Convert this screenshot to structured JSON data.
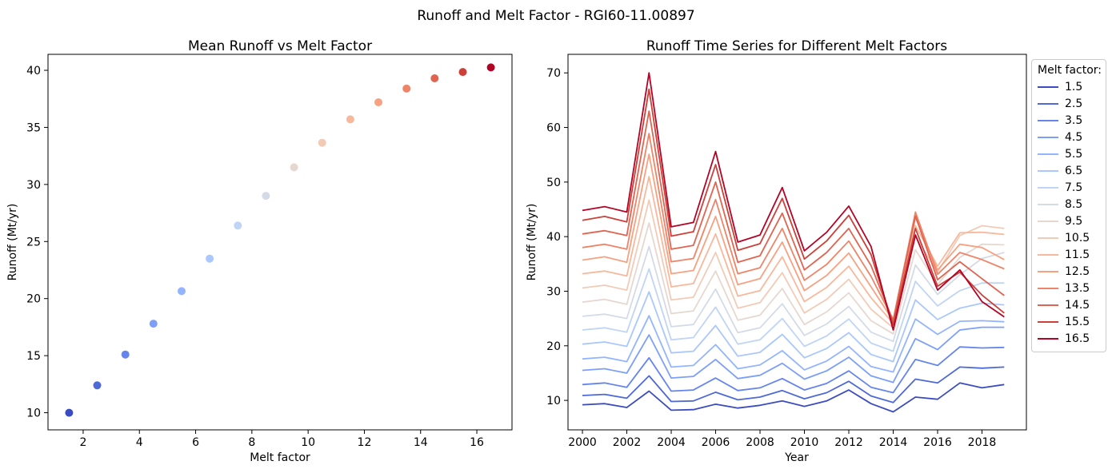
{
  "figure": {
    "suptitle": "Runoff and Melt Factor - RGI60-11.00897",
    "background": "#ffffff"
  },
  "legend": {
    "title": "Melt factor:"
  },
  "chart_data": [
    {
      "id": "mean-runoff-scatter",
      "type": "scatter",
      "title": "Mean Runoff vs Melt Factor",
      "xlabel": "Melt factor",
      "ylabel": "Runoff (Mt/yr)",
      "xlim": [
        0.75,
        17.25
      ],
      "ylim": [
        8.5,
        41.4
      ],
      "xticks": [
        2,
        4,
        6,
        8,
        10,
        12,
        14,
        16
      ],
      "yticks": [
        10,
        15,
        20,
        25,
        30,
        35,
        40
      ],
      "grid": false,
      "x": [
        1.5,
        2.5,
        3.5,
        4.5,
        5.5,
        6.5,
        7.5,
        8.5,
        9.5,
        10.5,
        11.5,
        12.5,
        13.5,
        14.5,
        15.5,
        16.5
      ],
      "y": [
        10.0,
        12.4,
        15.1,
        17.8,
        20.65,
        23.5,
        26.4,
        29.0,
        31.5,
        33.65,
        35.7,
        37.2,
        38.4,
        39.3,
        39.85,
        40.25
      ],
      "point_colors": [
        "#3B4CC0",
        "#4E69D8",
        "#6585ED",
        "#7C9FF9",
        "#93B5FF",
        "#AAC7FE",
        "#C0D4F5",
        "#D4DBE7",
        "#E5D8D1",
        "#F2CBB7",
        "#F7B89C",
        "#F6A282",
        "#EE8468",
        "#E06450",
        "#CC4039",
        "#B40426"
      ]
    },
    {
      "id": "runoff-timeseries",
      "type": "line",
      "title": "Runoff Time Series for Different Melt Factors",
      "xlabel": "Year",
      "ylabel": "Runoff (Mt/yr)",
      "xlim": [
        1999.35,
        2020.0
      ],
      "ylim": [
        4.6,
        73.4
      ],
      "xticks": [
        2000,
        2002,
        2004,
        2006,
        2008,
        2010,
        2012,
        2014,
        2016,
        2018
      ],
      "yticks": [
        10,
        20,
        30,
        40,
        50,
        60,
        70
      ],
      "grid": false,
      "legend_title": "Melt factor:",
      "legend_position": "outside-right",
      "x": [
        2000,
        2001,
        2002,
        2003,
        2004,
        2005,
        2006,
        2007,
        2008,
        2009,
        2010,
        2011,
        2012,
        2013,
        2014,
        2015,
        2016,
        2017,
        2018,
        2019
      ],
      "series": [
        {
          "name": "1.5",
          "color": "#3B4CC0",
          "values": [
            9.2,
            9.4,
            8.7,
            11.7,
            8.2,
            8.3,
            9.3,
            8.6,
            9.1,
            9.9,
            8.9,
            9.9,
            11.9,
            9.4,
            7.9,
            10.6,
            10.2,
            13.2,
            12.3,
            12.9
          ]
        },
        {
          "name": "2.5",
          "color": "#4E69D8",
          "values": [
            10.9,
            11.1,
            10.4,
            14.5,
            9.8,
            9.9,
            11.5,
            10.1,
            10.6,
            11.8,
            10.3,
            11.4,
            13.5,
            10.8,
            9.6,
            13.9,
            13.2,
            16.1,
            15.9,
            16.1
          ]
        },
        {
          "name": "3.5",
          "color": "#6585ED",
          "values": [
            12.9,
            13.2,
            12.4,
            17.8,
            11.7,
            11.9,
            14.1,
            11.8,
            12.3,
            14.0,
            11.9,
            13.1,
            15.4,
            12.4,
            11.4,
            17.5,
            16.4,
            19.8,
            19.6,
            19.7
          ]
        },
        {
          "name": "4.5",
          "color": "#7C9FF9",
          "values": [
            15.5,
            15.8,
            15.0,
            22.0,
            14.1,
            14.4,
            17.5,
            14.0,
            14.6,
            16.8,
            13.9,
            15.4,
            17.9,
            14.5,
            13.3,
            21.3,
            19.3,
            22.9,
            23.4,
            23.4
          ]
        },
        {
          "name": "5.5",
          "color": "#93B5FF",
          "values": [
            17.6,
            17.9,
            17.1,
            25.5,
            16.1,
            16.4,
            20.2,
            15.8,
            16.5,
            19.1,
            15.6,
            17.2,
            19.9,
            16.2,
            15.2,
            24.9,
            22.1,
            24.5,
            24.6,
            24.4
          ]
        },
        {
          "name": "6.5",
          "color": "#AAC7FE",
          "values": [
            20.3,
            20.7,
            19.9,
            29.9,
            18.7,
            19.0,
            23.7,
            18.1,
            18.8,
            22.1,
            17.8,
            19.5,
            22.4,
            18.4,
            17.1,
            28.4,
            24.8,
            26.9,
            27.8,
            27.5
          ]
        },
        {
          "name": "7.5",
          "color": "#C0D4F5",
          "values": [
            22.9,
            23.3,
            22.5,
            34.1,
            21.1,
            21.5,
            27.1,
            20.3,
            21.1,
            25.0,
            19.9,
            21.8,
            24.9,
            20.5,
            19.0,
            31.8,
            27.3,
            30.1,
            31.5,
            31.5
          ]
        },
        {
          "name": "8.5",
          "color": "#D4DBE7",
          "values": [
            25.4,
            25.8,
            25.0,
            38.2,
            23.5,
            23.9,
            30.4,
            22.4,
            23.3,
            27.7,
            21.9,
            24.0,
            27.2,
            22.5,
            20.8,
            34.8,
            29.4,
            33.0,
            36.0,
            37.1
          ]
        },
        {
          "name": "9.5",
          "color": "#E5D8D1",
          "values": [
            28.0,
            28.5,
            27.6,
            42.5,
            25.9,
            26.4,
            33.7,
            24.7,
            25.6,
            30.5,
            23.9,
            26.2,
            29.7,
            24.6,
            22.2,
            37.6,
            31.2,
            36.2,
            38.6,
            38.5
          ]
        },
        {
          "name": "10.5",
          "color": "#F2CBB7",
          "values": [
            30.6,
            31.1,
            30.2,
            46.7,
            28.4,
            28.9,
            37.1,
            26.9,
            27.9,
            33.4,
            26.0,
            28.5,
            32.2,
            26.7,
            23.3,
            40.0,
            33.5,
            40.2,
            42.0,
            41.5
          ]
        },
        {
          "name": "11.5",
          "color": "#F7B89C",
          "values": [
            33.2,
            33.7,
            32.8,
            51.0,
            30.8,
            31.4,
            40.5,
            29.1,
            30.1,
            36.3,
            28.1,
            30.7,
            34.6,
            28.8,
            24.1,
            42.0,
            34.6,
            40.7,
            40.8,
            40.4
          ]
        },
        {
          "name": "12.5",
          "color": "#F6A282",
          "values": [
            35.7,
            36.3,
            35.3,
            55.1,
            33.2,
            33.8,
            43.7,
            31.2,
            32.3,
            39.0,
            30.1,
            32.9,
            37.0,
            30.8,
            24.6,
            43.5,
            33.9,
            38.6,
            38.0,
            35.8
          ]
        },
        {
          "name": "13.5",
          "color": "#EE8468",
          "values": [
            38.0,
            38.6,
            37.7,
            58.9,
            35.4,
            36.0,
            46.8,
            33.2,
            34.3,
            41.5,
            32.0,
            34.9,
            39.2,
            32.7,
            24.8,
            44.5,
            33.1,
            37.1,
            35.8,
            34.1
          ]
        },
        {
          "name": "14.5",
          "color": "#E06450",
          "values": [
            40.5,
            41.1,
            40.2,
            63.0,
            37.7,
            38.4,
            50.0,
            35.3,
            36.5,
            44.3,
            33.9,
            37.1,
            41.5,
            34.7,
            24.5,
            43.8,
            32.1,
            35.4,
            32.3,
            29.2
          ]
        },
        {
          "name": "15.5",
          "color": "#CC4039",
          "values": [
            43.0,
            43.7,
            42.7,
            67.0,
            40.1,
            40.9,
            53.2,
            37.5,
            38.7,
            47.0,
            35.9,
            39.2,
            43.9,
            36.7,
            23.8,
            41.5,
            30.9,
            33.5,
            29.3,
            26.0
          ]
        },
        {
          "name": "16.5",
          "color": "#B40426",
          "values": [
            44.8,
            45.5,
            44.5,
            70.0,
            41.8,
            42.6,
            55.6,
            39.0,
            40.3,
            49.0,
            37.4,
            40.8,
            45.6,
            38.2,
            22.9,
            40.3,
            30.2,
            33.9,
            28.1,
            25.3
          ]
        }
      ]
    }
  ]
}
